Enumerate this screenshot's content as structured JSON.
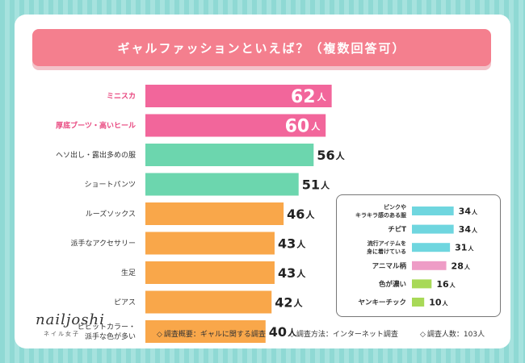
{
  "chart_data": [
    {
      "type": "bar",
      "orientation": "horizontal",
      "title": "ギャルファッションといえば？（複数回答可）",
      "unit": "人",
      "categories": [
        "ミニスカ",
        "厚底ブーツ・高いヒール",
        "ヘソ出し・露出多めの服",
        "ショートパンツ",
        "ルーズソックス",
        "派手なアクセサリー",
        "生足",
        "ピアス",
        [
          "ビビットカラー・",
          "派手な色が多い"
        ]
      ],
      "values": [
        62,
        60,
        56,
        51,
        46,
        43,
        43,
        42,
        40
      ],
      "colors": [
        "#f2669b",
        "#f2669b",
        "#6cd6ae",
        "#6cd6ae",
        "#f9a74a",
        "#f9a74a",
        "#f9a74a",
        "#f9a74a",
        "#f9a74a"
      ],
      "label_colors": [
        "#e8457e",
        "#e8457e",
        "#333333",
        "#333333",
        "#333333",
        "#333333",
        "#333333",
        "#333333",
        "#333333"
      ],
      "xlim": [
        0,
        70
      ]
    },
    {
      "type": "bar",
      "orientation": "horizontal",
      "unit": "人",
      "categories": [
        [
          "ピンクや",
          "キラキラ感のある服"
        ],
        "チビT",
        [
          "流行アイテムを",
          "身に着けている"
        ],
        "アニマル柄",
        "色が濃い",
        "ヤンキーチック"
      ],
      "values": [
        34,
        34,
        31,
        28,
        16,
        10
      ],
      "colors": [
        "#6fd6df",
        "#6fd6df",
        "#6fd6df",
        "#ee9cc6",
        "#a8d957",
        "#a8d957"
      ],
      "xlim": [
        0,
        40
      ]
    }
  ],
  "brand": {
    "logo": "nailjoshi",
    "sub": "ネイル女子"
  },
  "footer": {
    "overview_label": "調査概要：ギャルに関する調査",
    "method_label": "調査方法：インターネット調査",
    "count_label": "調査人数：103人",
    "bullet": "◇"
  }
}
